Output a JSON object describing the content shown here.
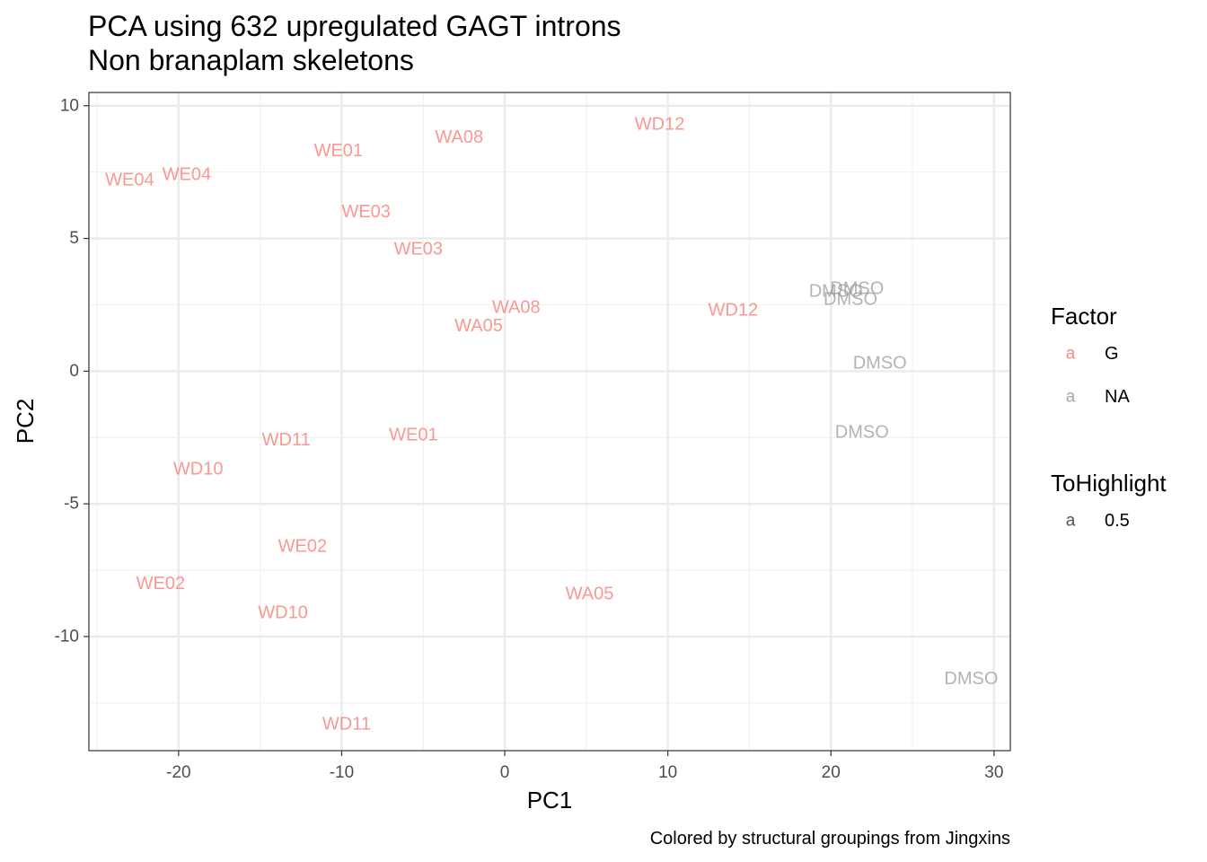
{
  "chart_data": {
    "type": "scatter",
    "title": "PCA using 632 upregulated GAGT introns",
    "subtitle": "Non branaplam skeletons",
    "xlabel": "PC1",
    "ylabel": "PC2",
    "caption": "Colored by structural groupings from Jingxins",
    "xlim": [
      -25.5,
      31
    ],
    "ylim": [
      -14.3,
      10.5
    ],
    "x_ticks": [
      -20,
      -10,
      0,
      10,
      20,
      30
    ],
    "y_ticks": [
      10,
      5,
      0,
      -5,
      -10
    ],
    "x_tick_labels": [
      "-20",
      "-10",
      "0",
      "10",
      "20",
      "30"
    ],
    "y_tick_labels": [
      "10",
      "5",
      "0",
      "-5",
      "-10"
    ],
    "grid": true,
    "legend_position": "right",
    "colors": {
      "G": "#F8766D",
      "NA": "#999999"
    },
    "points_alpha": 0.5,
    "points": [
      {
        "label": "WD12",
        "x": 9.5,
        "y": 9.3,
        "group": "G"
      },
      {
        "label": "WA08",
        "x": -2.8,
        "y": 8.8,
        "group": "G"
      },
      {
        "label": "WE01",
        "x": -10.2,
        "y": 8.3,
        "group": "G"
      },
      {
        "label": "WE04",
        "x": -23.0,
        "y": 7.2,
        "group": "G"
      },
      {
        "label": "WE04",
        "x": -19.5,
        "y": 7.4,
        "group": "G"
      },
      {
        "label": "WE03",
        "x": -8.5,
        "y": 6.0,
        "group": "G"
      },
      {
        "label": "WE03",
        "x": -5.3,
        "y": 4.6,
        "group": "G"
      },
      {
        "label": "WA08",
        "x": 0.7,
        "y": 2.4,
        "group": "G"
      },
      {
        "label": "WA05",
        "x": -1.6,
        "y": 1.7,
        "group": "G"
      },
      {
        "label": "WD12",
        "x": 14.0,
        "y": 2.3,
        "group": "G"
      },
      {
        "label": "DMSO",
        "x": 20.3,
        "y": 3.0,
        "group": "NA"
      },
      {
        "label": "DMSO",
        "x": 21.6,
        "y": 3.1,
        "group": "NA"
      },
      {
        "label": "DMSO",
        "x": 21.2,
        "y": 2.7,
        "group": "NA"
      },
      {
        "label": "DMSO",
        "x": 23.0,
        "y": 0.3,
        "group": "NA"
      },
      {
        "label": "DMSO",
        "x": 21.9,
        "y": -2.3,
        "group": "NA"
      },
      {
        "label": "DMSO",
        "x": 28.6,
        "y": -11.6,
        "group": "NA"
      },
      {
        "label": "WD11",
        "x": -13.4,
        "y": -2.6,
        "group": "G"
      },
      {
        "label": "WE01",
        "x": -5.6,
        "y": -2.4,
        "group": "G"
      },
      {
        "label": "WD10",
        "x": -18.8,
        "y": -3.7,
        "group": "G"
      },
      {
        "label": "WE02",
        "x": -12.4,
        "y": -6.6,
        "group": "G"
      },
      {
        "label": "WE02",
        "x": -21.1,
        "y": -8.0,
        "group": "G"
      },
      {
        "label": "WA05",
        "x": 5.2,
        "y": -8.4,
        "group": "G"
      },
      {
        "label": "WD10",
        "x": -13.6,
        "y": -9.1,
        "group": "G"
      },
      {
        "label": "WD11",
        "x": -9.7,
        "y": -13.3,
        "group": "G"
      }
    ],
    "legend": [
      {
        "title": "Factor",
        "entries": [
          {
            "key": "a",
            "label": "G",
            "color": "#F8766D"
          },
          {
            "key": "a",
            "label": "NA",
            "color": "#999999"
          }
        ]
      },
      {
        "title": "ToHighlight",
        "entries": [
          {
            "key": "a",
            "label": "0.5",
            "color": "#333333"
          }
        ]
      }
    ]
  }
}
